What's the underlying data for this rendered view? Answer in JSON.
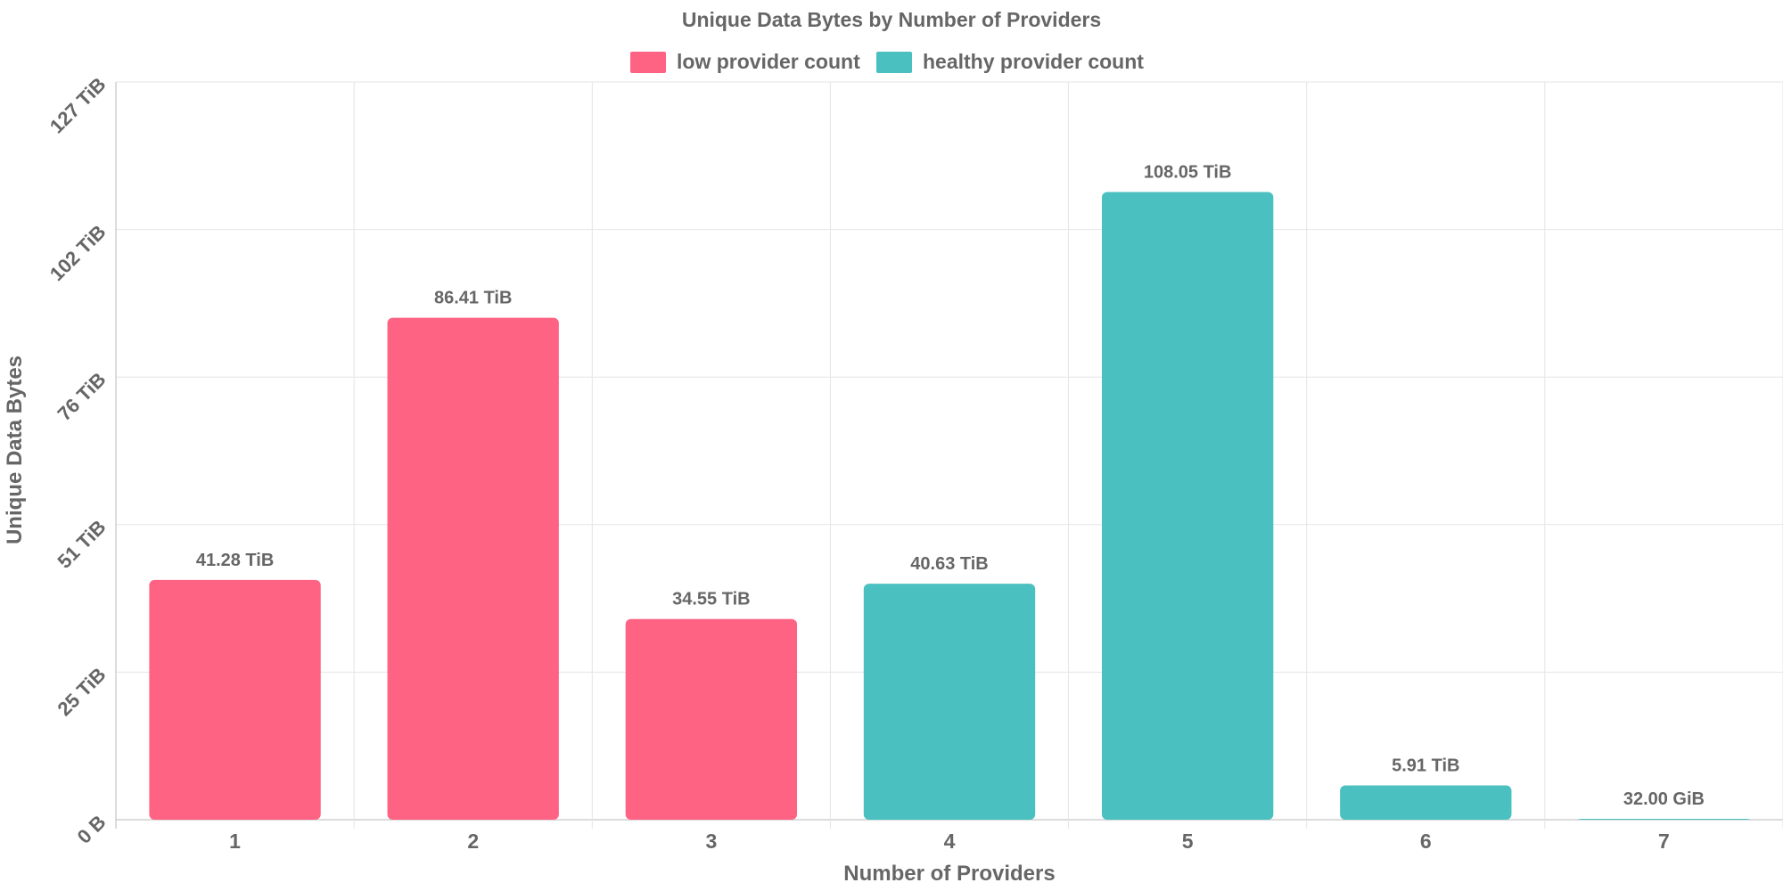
{
  "chart_data": {
    "type": "bar",
    "title": "Unique Data Bytes by Number of Providers",
    "xlabel": "Number of Providers",
    "ylabel": "Unique Data Bytes",
    "categories": [
      "1",
      "2",
      "3",
      "4",
      "5",
      "6",
      "7"
    ],
    "values_tib": [
      41.28,
      86.41,
      34.55,
      40.63,
      108.05,
      5.91,
      0.03125
    ],
    "data_labels": [
      "41.28 TiB",
      "86.41 TiB",
      "34.55 TiB",
      "40.63 TiB",
      "108.05 TiB",
      "5.91 TiB",
      "32.00 GiB"
    ],
    "bar_series_index": [
      0,
      0,
      0,
      1,
      1,
      1,
      1
    ],
    "series": [
      {
        "name": "low provider count",
        "color": "#ff6384"
      },
      {
        "name": "healthy provider count",
        "color": "#4bc0c0"
      }
    ],
    "y_ticks": [
      {
        "value": 0,
        "label": "0 B"
      },
      {
        "value": 25.4,
        "label": "25 TiB"
      },
      {
        "value": 50.8,
        "label": "51 TiB"
      },
      {
        "value": 76.2,
        "label": "76 TiB"
      },
      {
        "value": 101.6,
        "label": "102 TiB"
      },
      {
        "value": 127,
        "label": "127 TiB"
      }
    ],
    "ylim": [
      0,
      127
    ],
    "grid": true,
    "legend_position": "top-center"
  }
}
